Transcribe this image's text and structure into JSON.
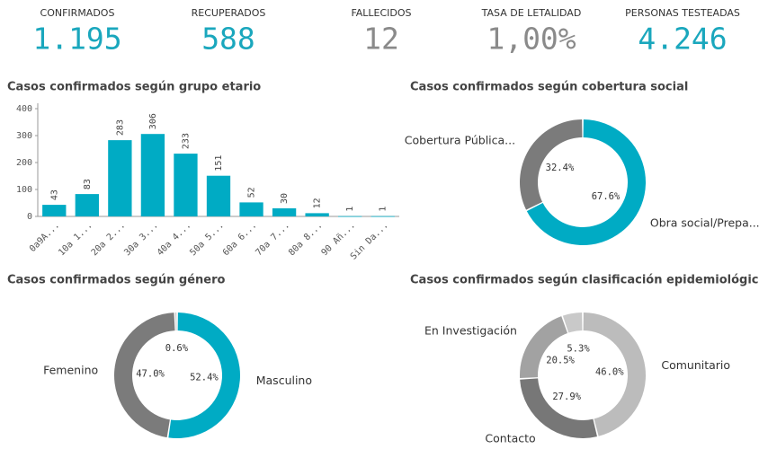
{
  "kpis": [
    {
      "label": "CONFIRMADOS",
      "value": "1.195",
      "color": "#1aa7bd"
    },
    {
      "label": "RECUPERADOS",
      "value": "588",
      "color": "#1aa7bd"
    },
    {
      "label": "FALLECIDOS",
      "value": "12",
      "color": "#8a8a8a"
    },
    {
      "label": "TASA DE LETALIDAD",
      "value": "1,00%",
      "color": "#8a8a8a"
    },
    {
      "label": "PERSONAS TESTEADAS",
      "value": "4.246",
      "color": "#1aa7bd"
    }
  ],
  "chart_data": [
    {
      "type": "bar",
      "title": "Casos confirmados según grupo etario",
      "categories": [
        "0a9A...",
        "10a 1...",
        "20a 2...",
        "30a 3...",
        "40a 4...",
        "50a 5...",
        "60a 6...",
        "70a 7...",
        "80a 8...",
        "90 Añ...",
        "Sin Da..."
      ],
      "values": [
        43,
        83,
        283,
        306,
        233,
        151,
        52,
        30,
        12,
        1,
        1
      ],
      "color": "#00abc4",
      "ylim": [
        0,
        400
      ],
      "yticks": [
        0,
        100,
        200,
        300,
        400
      ]
    },
    {
      "type": "donut",
      "title": "Casos confirmados según cobertura social",
      "categories": [
        "Obra social/Prepa...",
        "Cobertura Pública..."
      ],
      "values": [
        67.6,
        32.4
      ],
      "value_labels": [
        "67.6%",
        "32.4%"
      ],
      "colors": [
        "#00abc4",
        "#7b7b7b"
      ]
    },
    {
      "type": "donut",
      "title": "Casos confirmados según género",
      "categories": [
        "Masculino",
        "Femenino",
        null
      ],
      "values": [
        52.4,
        47.0,
        0.6
      ],
      "value_labels": [
        "52.4%",
        "47.0%",
        "0.6%"
      ],
      "colors": [
        "#00abc4",
        "#7b7b7b",
        "#b0b0b0"
      ]
    },
    {
      "type": "donut",
      "title": "Casos confirmados según clasificación epidemiológica",
      "categories": [
        "Comunitario",
        "Contacto",
        "En Investigación",
        null
      ],
      "values": [
        46.0,
        27.9,
        20.5,
        5.3
      ],
      "value_labels": [
        "46.0%",
        "27.9%",
        "20.5%",
        "5.3%"
      ],
      "colors": [
        "#bcbcbc",
        "#777777",
        "#a2a2a2",
        "#c9c9c9"
      ]
    }
  ]
}
